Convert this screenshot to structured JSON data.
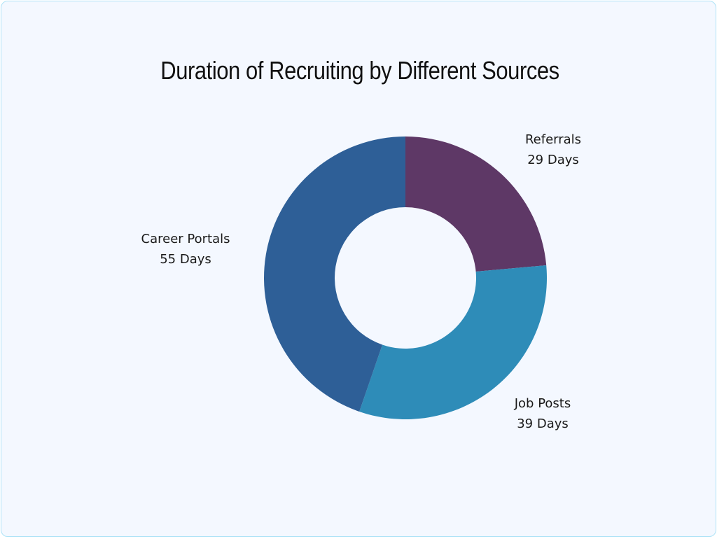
{
  "title": "Duration of Recruiting by Different Sources",
  "labels": {
    "referrals": {
      "name": "Referrals",
      "value": "29 Days"
    },
    "job_posts": {
      "name": "Job Posts",
      "value": "39 Days"
    },
    "career_portals": {
      "name": "Career Portals",
      "value": "55 Days"
    }
  },
  "colors": {
    "referrals": "#5e3866",
    "job_posts": "#2e8cb8",
    "career_portals": "#2e5f97",
    "background": "#f4f8ff"
  },
  "chart_data": {
    "type": "pie",
    "subtype": "donut",
    "title": "Duration of Recruiting by Different Sources",
    "categories": [
      "Referrals",
      "Job Posts",
      "Career Portals"
    ],
    "values": [
      29,
      39,
      55
    ],
    "unit": "Days",
    "colors": [
      "#5e3866",
      "#2e8cb8",
      "#2e5f97"
    ],
    "legend": "none (direct labels)"
  }
}
